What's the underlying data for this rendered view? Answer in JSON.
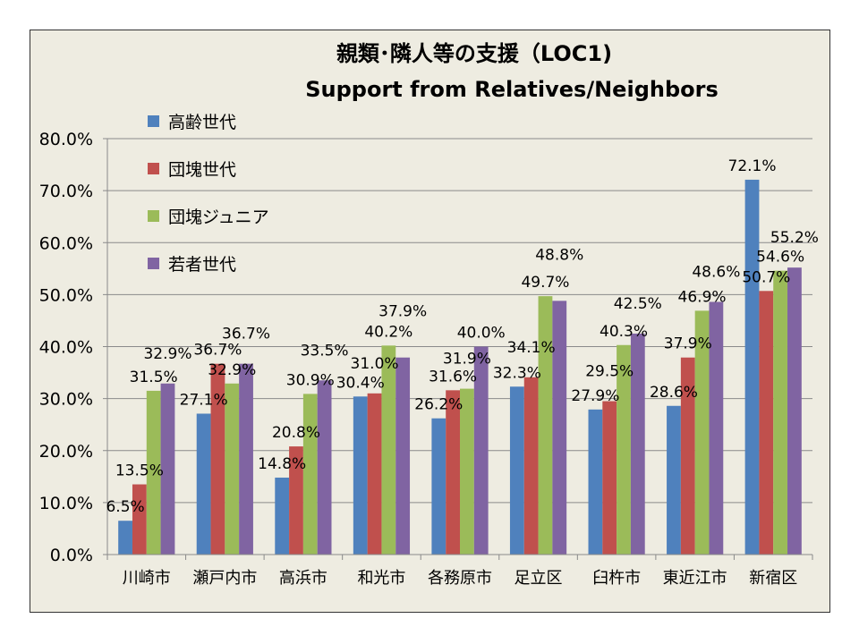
{
  "chart_data": {
    "type": "bar",
    "title": "親類･隣人等の支援（LOC1)",
    "subtitle": "Support from Relatives/Neighbors",
    "xlabel": "",
    "ylabel": "",
    "ylim": [
      0,
      80
    ],
    "yticks": [
      "0.0%",
      "10.0%",
      "20.0%",
      "30.0%",
      "40.0%",
      "50.0%",
      "60.0%",
      "70.0%",
      "80.0%"
    ],
    "grid": true,
    "legend_position": "top-left",
    "categories": [
      "川崎市",
      "瀬戸内市",
      "高浜市",
      "和光市",
      "各務原市",
      "足立区",
      "臼杵市",
      "東近江市",
      "新宿区"
    ],
    "series": [
      {
        "name": "高齢世代",
        "color": "#4f81bd",
        "values": [
          6.5,
          27.1,
          14.8,
          30.4,
          26.2,
          32.3,
          27.9,
          28.6,
          72.1
        ],
        "labels": [
          "6.5%",
          "27.1%",
          "14.8%",
          "30.4%",
          "26.2%",
          "32.3%",
          "27.9%",
          "28.6%",
          "72.1%"
        ]
      },
      {
        "name": "団塊世代",
        "color": "#c0504d",
        "values": [
          13.5,
          36.7,
          20.8,
          31.0,
          31.6,
          34.1,
          29.5,
          37.9,
          50.7
        ],
        "labels": [
          "13.5%",
          "36.7%",
          "20.8%",
          "31.0%",
          "31.6%",
          "34.1%",
          "29.5%",
          "37.9%",
          "50.7%"
        ]
      },
      {
        "name": "団塊ジュニア",
        "color": "#9bbb59",
        "values": [
          31.5,
          32.9,
          30.9,
          40.2,
          31.9,
          49.7,
          40.3,
          46.9,
          54.6
        ],
        "labels": [
          "31.5%",
          "32.9%",
          "30.9%",
          "40.2%",
          "31.9%",
          "49.7%",
          "40.3%",
          "46.9%",
          "54.6%"
        ]
      },
      {
        "name": "若者世代",
        "color": "#8064a2",
        "values": [
          32.9,
          36.7,
          33.5,
          37.9,
          40.0,
          48.8,
          42.5,
          48.6,
          55.2
        ],
        "labels": [
          "32.9%",
          "36.7%",
          "33.5%",
          "37.9%",
          "40.0%",
          "48.8%",
          "42.5%",
          "48.6%",
          "55.2%"
        ]
      }
    ]
  }
}
